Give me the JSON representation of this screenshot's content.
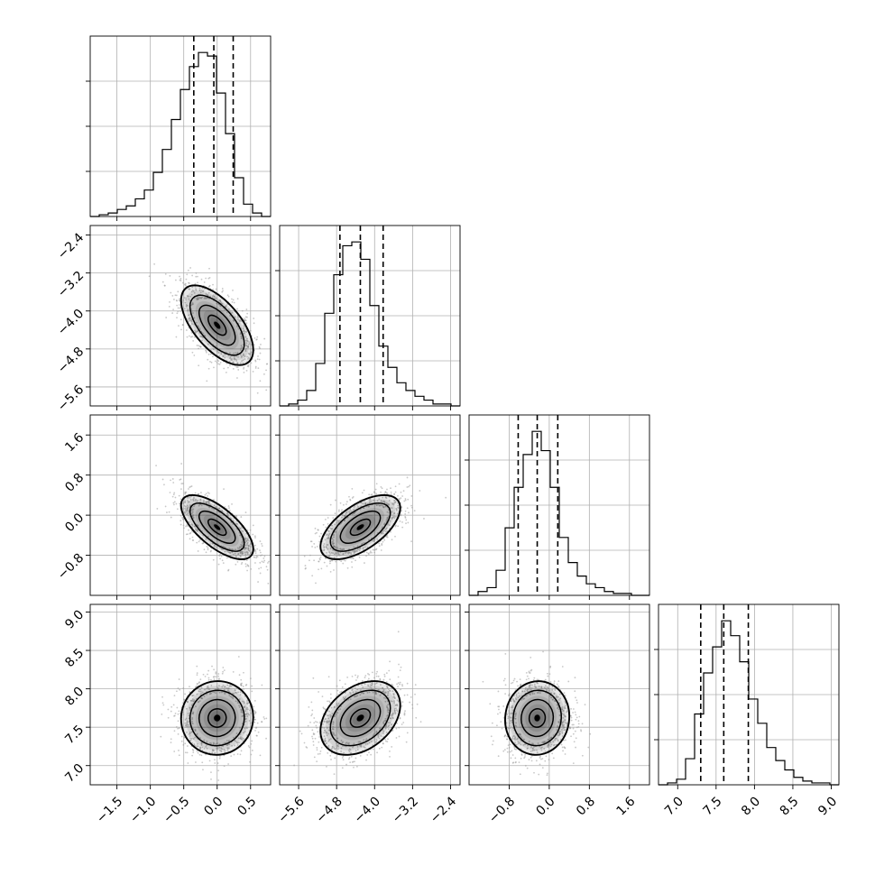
{
  "chart_data": {
    "type": "corner",
    "title": "",
    "parameters": [
      {
        "label": "",
        "range": [
          -1.9,
          0.8
        ],
        "ticks": [
          -1.5,
          -1.0,
          -0.5,
          0.0,
          0.5
        ],
        "tick_labels": [
          "−1.5",
          "−1.0",
          "−0.5",
          "0.0",
          "0.5"
        ],
        "quantiles": {
          "q16": -0.35,
          "q50": -0.05,
          "q84": 0.24
        }
      },
      {
        "label": "",
        "range": [
          -6.0,
          -2.2
        ],
        "ticks": [
          -5.6,
          -4.8,
          -4.0,
          -3.2,
          -2.4
        ],
        "tick_labels": [
          "−5.6",
          "−4.8",
          "−4.0",
          "−3.2",
          "−2.4"
        ],
        "quantiles": {
          "q16": -4.73,
          "q50": -4.3,
          "q84": -3.82
        }
      },
      {
        "label": "",
        "range": [
          -1.6,
          2.0
        ],
        "ticks": [
          -0.8,
          0.0,
          0.8,
          1.6
        ],
        "tick_labels": [
          "−0.8",
          "0.0",
          "0.8",
          "1.6"
        ],
        "quantiles": {
          "q16": -0.62,
          "q50": -0.24,
          "q84": 0.17
        }
      },
      {
        "label": "",
        "range": [
          6.75,
          9.1
        ],
        "ticks": [
          7.0,
          7.5,
          8.0,
          8.5,
          9.0
        ],
        "tick_labels": [
          "7.0",
          "7.5",
          "8.0",
          "8.5",
          "9.0"
        ],
        "quantiles": {
          "q16": 7.3,
          "q50": 7.6,
          "q84": 7.92
        }
      }
    ],
    "histograms": [
      {
        "param": 0,
        "bin_start": -1.9,
        "bin_width": 0.135,
        "counts": [
          0,
          1,
          2,
          4,
          6,
          10,
          15,
          25,
          38,
          55,
          72,
          85,
          93,
          91,
          70,
          47,
          22,
          7,
          2,
          0
        ]
      },
      {
        "param": 1,
        "bin_start": -6.0,
        "bin_width": 0.19,
        "counts": [
          0,
          1,
          3,
          8,
          22,
          48,
          68,
          83,
          85,
          76,
          52,
          31,
          20,
          12,
          8,
          5,
          3,
          1,
          1,
          0
        ]
      },
      {
        "param": 2,
        "bin_start": -1.6,
        "bin_width": 0.18,
        "counts": [
          0,
          2,
          4,
          13,
          35,
          56,
          73,
          85,
          75,
          56,
          30,
          17,
          10,
          6,
          4,
          2,
          1,
          1,
          0,
          0
        ]
      },
      {
        "param": 3,
        "bin_start": 6.75,
        "bin_width": 0.1175,
        "counts": [
          0,
          1,
          3,
          14,
          38,
          60,
          74,
          88,
          80,
          66,
          46,
          33,
          20,
          13,
          8,
          4,
          2,
          1,
          1,
          0
        ]
      }
    ],
    "pairs": [
      {
        "x": 0,
        "y": 1,
        "mean": [
          0.0,
          -4.3
        ],
        "sd": [
          0.27,
          0.42
        ],
        "corr": -0.62
      },
      {
        "x": 0,
        "y": 2,
        "mean": [
          0.0,
          -0.24
        ],
        "sd": [
          0.27,
          0.32
        ],
        "corr": -0.68
      },
      {
        "x": 1,
        "y": 2,
        "mean": [
          -4.3,
          -0.24
        ],
        "sd": [
          0.42,
          0.32
        ],
        "corr": 0.6
      },
      {
        "x": 0,
        "y": 3,
        "mean": [
          0.0,
          7.62
        ],
        "sd": [
          0.27,
          0.24
        ],
        "corr": 0.02
      },
      {
        "x": 1,
        "y": 3,
        "mean": [
          -4.3,
          7.62
        ],
        "sd": [
          0.42,
          0.24
        ],
        "corr": 0.35
      },
      {
        "x": 2,
        "y": 3,
        "mean": [
          -0.24,
          7.62
        ],
        "sd": [
          0.32,
          0.24
        ],
        "corr": 0.04
      }
    ],
    "contour_levels": [
      0.5,
      1.0,
      1.5,
      2.0
    ],
    "grid": true,
    "colors": {
      "line": "#000000",
      "points": "#9a9a9a",
      "grid": "#b0b0b0"
    }
  }
}
